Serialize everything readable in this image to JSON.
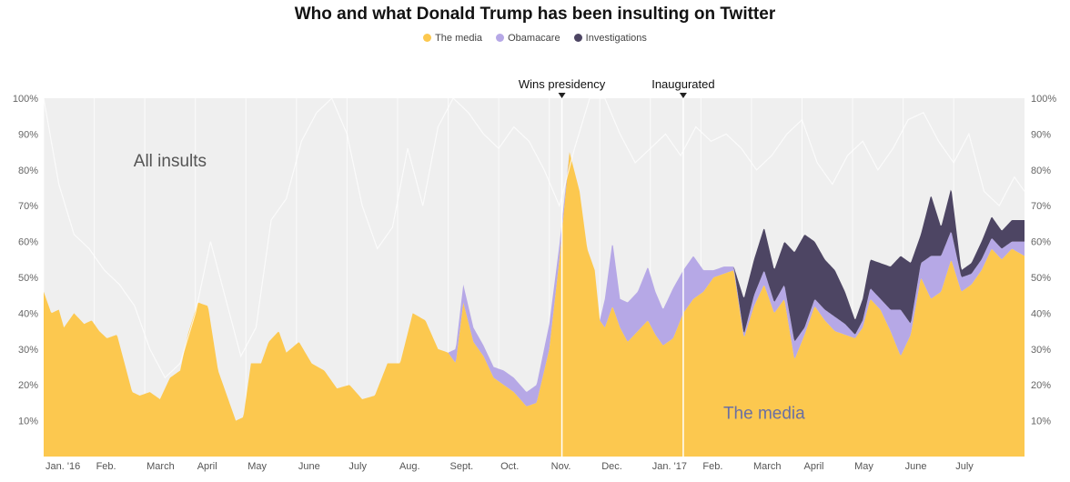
{
  "chart_data": {
    "type": "area",
    "title": "Who and what Donald Trump has been insulting on Twitter",
    "xlabel": "",
    "ylabel": "",
    "ylim": [
      0,
      100
    ],
    "ytick_labels": [
      "10%",
      "20%",
      "30%",
      "40%",
      "50%",
      "60%",
      "70%",
      "80%",
      "90%",
      "100%"
    ],
    "x_tick_labels": [
      "Jan. '16",
      "Feb.",
      "March",
      "April",
      "May",
      "June",
      "July",
      "Aug.",
      "Sept.",
      "Oct.",
      "Nov.",
      "Dec.",
      "Jan. '17",
      "Feb.",
      "March",
      "April",
      "May",
      "June",
      "July"
    ],
    "x_tick_months": [
      0,
      1,
      2,
      3,
      4,
      5,
      6,
      7,
      8,
      9,
      10,
      11,
      12,
      13,
      14,
      15,
      16,
      17,
      18
    ],
    "x_range_months": [
      0,
      19.4
    ],
    "legend": [
      {
        "name": "The media",
        "color": "#fcc84f"
      },
      {
        "name": "Obamacare",
        "color": "#b6a8e6"
      },
      {
        "name": "Investigations",
        "color": "#4d4563"
      }
    ],
    "legend_position": "top-center",
    "annotations": [
      {
        "label": "Wins presidency",
        "month": 10.25
      },
      {
        "label": "Inaugurated",
        "month": 12.65
      }
    ],
    "area_labels": [
      {
        "text": "All insults",
        "month": 2.5,
        "y": 81,
        "color": "#555555"
      },
      {
        "text": "The media",
        "month": 14.25,
        "y": 10.5,
        "color": "#6a6fa3"
      }
    ],
    "background_color": "#efefef",
    "grid": true,
    "series": [
      {
        "name": "The media",
        "x": [
          0,
          0.15,
          0.3,
          0.4,
          0.5,
          0.6,
          0.8,
          0.95,
          1.1,
          1.25,
          1.45,
          1.6,
          1.75,
          1.9,
          2.1,
          2.3,
          2.5,
          2.7,
          2.85,
          3.05,
          3.25,
          3.45,
          3.6,
          3.8,
          3.95,
          4.1,
          4.3,
          4.45,
          4.65,
          4.8,
          5.05,
          5.3,
          5.55,
          5.8,
          6.05,
          6.3,
          6.55,
          6.8,
          7.05,
          7.3,
          7.55,
          7.8,
          8.0,
          8.15,
          8.3,
          8.5,
          8.7,
          8.9,
          9.1,
          9.3,
          9.55,
          9.75,
          10.0,
          10.2,
          10.4,
          10.6,
          10.75,
          10.9,
          11.0,
          11.1,
          11.25,
          11.4,
          11.55,
          11.75,
          11.95,
          12.1,
          12.25,
          12.45,
          12.65,
          12.85,
          13.05,
          13.25,
          13.45,
          13.65,
          13.85,
          14.05,
          14.25,
          14.45,
          14.65,
          14.85,
          15.05,
          15.25,
          15.45,
          15.65,
          15.85,
          16.05,
          16.2,
          16.35,
          16.55,
          16.75,
          16.95,
          17.15,
          17.35,
          17.55,
          17.75,
          17.95,
          18.15,
          18.35,
          18.55,
          18.75,
          18.95,
          19.15,
          19.4
        ],
        "values": [
          46,
          40,
          41,
          36,
          38,
          40,
          37,
          38,
          35,
          33,
          34,
          26,
          18,
          17,
          18,
          16,
          22,
          24,
          34,
          43,
          42,
          24,
          18,
          10,
          11,
          26,
          26,
          32,
          35,
          29,
          32,
          26,
          24,
          19,
          20,
          16,
          17,
          26,
          26,
          40,
          38,
          30,
          29,
          26,
          43,
          32,
          28,
          22,
          20,
          18,
          14,
          15,
          30,
          55,
          85,
          74,
          58,
          52,
          38,
          36,
          42,
          36,
          32,
          35,
          38,
          34,
          31,
          33,
          40,
          44,
          46,
          50,
          51,
          52,
          33,
          42,
          48,
          40,
          44,
          27,
          34,
          42,
          38,
          35,
          34,
          33,
          36,
          44,
          41,
          35,
          28,
          34,
          50,
          44,
          46,
          55,
          46,
          48,
          52,
          58,
          55,
          58,
          56
        ]
      },
      {
        "name": "Obamacare",
        "x": [
          0,
          8.0,
          8.15,
          8.3,
          8.5,
          8.7,
          8.9,
          9.1,
          9.3,
          9.55,
          9.75,
          10.0,
          10.2,
          10.4,
          10.6,
          10.75,
          10.9,
          11.0,
          11.1,
          11.25,
          11.4,
          11.55,
          11.75,
          11.95,
          12.1,
          12.25,
          12.45,
          12.65,
          12.85,
          13.05,
          13.25,
          13.45,
          13.65,
          13.85,
          14.05,
          14.25,
          14.45,
          14.65,
          14.85,
          15.05,
          15.25,
          15.45,
          15.65,
          15.85,
          16.05,
          16.2,
          16.35,
          16.55,
          16.75,
          16.95,
          17.15,
          17.35,
          17.55,
          17.75,
          17.95,
          18.15,
          18.35,
          18.55,
          18.75,
          18.95,
          19.15,
          19.4
        ],
        "values": [
          0,
          0,
          4,
          5,
          4,
          3,
          3,
          4,
          4,
          4,
          5,
          7,
          4,
          0,
          0,
          0,
          0,
          0,
          8,
          18,
          8,
          11,
          11,
          15,
          12,
          10,
          14,
          12,
          12,
          6,
          2,
          2,
          1,
          1,
          3,
          4,
          3,
          4,
          5,
          2,
          2,
          3,
          4,
          3,
          1,
          2,
          3,
          3,
          6,
          13,
          3,
          4,
          12,
          10,
          8,
          4,
          3,
          3,
          3,
          3,
          2,
          4
        ]
      },
      {
        "name": "Investigations",
        "x": [
          0,
          13.65,
          13.85,
          14.05,
          14.25,
          14.45,
          14.65,
          14.85,
          15.05,
          15.25,
          15.45,
          15.65,
          15.85,
          16.05,
          16.2,
          16.35,
          16.55,
          16.75,
          16.95,
          17.15,
          17.35,
          17.55,
          17.75,
          17.95,
          18.15,
          18.35,
          18.55,
          18.75,
          18.95,
          19.15,
          19.4
        ],
        "values": [
          0,
          0,
          10,
          10,
          12,
          9,
          12,
          25,
          26,
          16,
          14,
          13,
          9,
          4,
          6,
          8,
          10,
          12,
          15,
          17,
          8,
          17,
          8,
          12,
          2,
          3,
          5,
          6,
          5,
          6,
          6
        ]
      },
      {
        "name": "All insults",
        "x": [
          0,
          0.3,
          0.6,
          0.9,
          1.2,
          1.5,
          1.8,
          2.1,
          2.4,
          2.7,
          3.0,
          3.3,
          3.6,
          3.9,
          4.2,
          4.5,
          4.8,
          5.1,
          5.4,
          5.7,
          6.0,
          6.3,
          6.6,
          6.9,
          7.2,
          7.5,
          7.8,
          8.1,
          8.4,
          8.7,
          9.0,
          9.3,
          9.6,
          9.9,
          10.2,
          10.5,
          10.8,
          11.1,
          11.4,
          11.7,
          12.0,
          12.3,
          12.6,
          12.9,
          13.2,
          13.5,
          13.8,
          14.1,
          14.4,
          14.7,
          15.0,
          15.3,
          15.6,
          15.9,
          16.2,
          16.5,
          16.8,
          17.1,
          17.4,
          17.7,
          18.0,
          18.3,
          18.6,
          18.9,
          19.2,
          19.4
        ],
        "values": [
          100,
          76,
          62,
          58,
          52,
          48,
          42,
          30,
          22,
          26,
          40,
          60,
          44,
          28,
          36,
          66,
          72,
          88,
          96,
          100,
          90,
          70,
          58,
          64,
          86,
          70,
          92,
          100,
          96,
          90,
          86,
          92,
          88,
          80,
          70,
          86,
          100,
          100,
          90,
          82,
          86,
          90,
          84,
          92,
          88,
          90,
          86,
          80,
          84,
          90,
          94,
          82,
          76,
          84,
          88,
          80,
          86,
          94,
          96,
          88,
          82,
          90,
          74,
          70,
          78,
          74
        ]
      }
    ]
  }
}
